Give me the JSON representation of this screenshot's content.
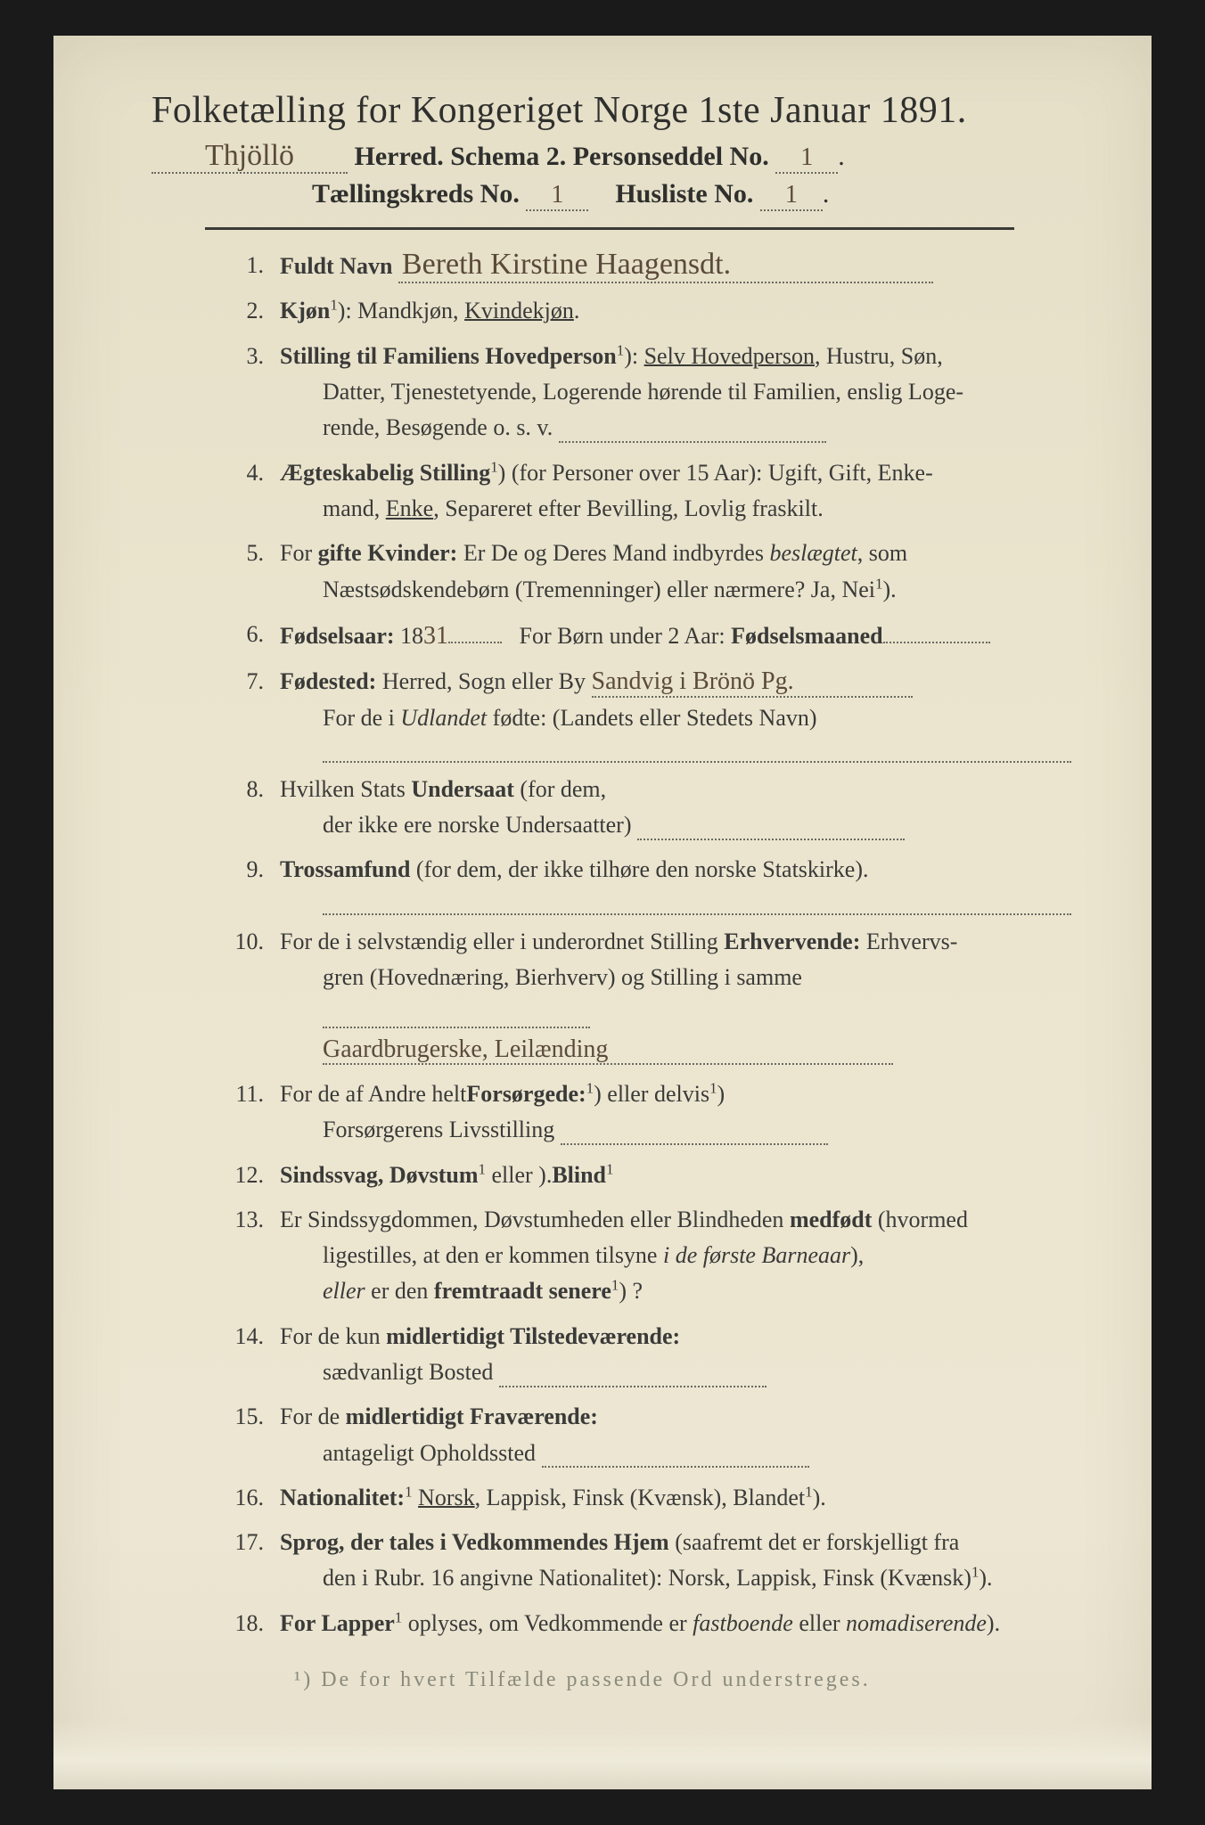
{
  "colors": {
    "paper_bg": "#e8e2ce",
    "page_bg": "#1a1a1a",
    "text": "#3a3a38",
    "handwriting": "#5b4a3a",
    "dotted": "#6a6a60",
    "rule": "#3a3a36",
    "footnote": "#8a8a7c"
  },
  "header": {
    "title_main": "Folketælling for Kongeriget Norge 1ste Januar 1891.",
    "herred_written": "Thjöllö",
    "line2_print": "Herred.   Schema 2.   Personseddel No.",
    "personseddel_no": "1",
    "line3_label_a": "Tællingskreds No.",
    "taellingskreds_no": "1",
    "line3_label_b": "Husliste No.",
    "husliste_no": "1"
  },
  "items": [
    {
      "n": "1.",
      "label": "Fuldt Navn",
      "after": "",
      "written": "Bereth Kirstine Haagensdt."
    },
    {
      "n": "2.",
      "label": "Kjøn",
      "sup": "1",
      "after": "): Mandkjøn, ",
      "underlined": "Kvindekjøn",
      "tail": "."
    },
    {
      "n": "3.",
      "label": "Stilling til Familiens Hovedperson",
      "sup": "1",
      "after": "): ",
      "underlined": "Selv Hovedperson",
      "tail": ", Hustru, Søn,",
      "cont": [
        "Datter, Tjenestetyende, Logerende hørende til Familien, enslig Loge-",
        "rende, Besøgende o. s. v."
      ],
      "cont_dotted_last": true
    },
    {
      "n": "4.",
      "label": "Ægteskabelig Stilling",
      "sup": "1",
      "after": ") (for Personer over 15 Aar): Ugift, Gift, Enke-",
      "cont": [
        "mand, <u>Enke</u>, Separeret efter Bevilling, Lovlig fraskilt."
      ]
    },
    {
      "n": "5.",
      "plain": "For ",
      "label": "gifte Kvinder:",
      "after": " Er De og Deres Mand indbyrdes <i>beslægtet</i>, som",
      "cont": [
        "Næstsødskendebørn (Tremenninger) eller nærmere?  Ja, Nei<sup>1</sup>)."
      ]
    },
    {
      "n": "6.",
      "label": "Fødselsaar:",
      "after": " 18",
      "written_inline": "31",
      "tail_dotted": true,
      "tail_after": "   For Børn under 2 Aar: ",
      "label2": "Fødselsmaaned",
      "tail_dotted2": true
    },
    {
      "n": "7.",
      "label": "Fødested:",
      "after": " Herred, Sogn eller By ",
      "written": "Sandvig i Brönö Pg.",
      "cont": [
        "For de i <i>Udlandet</i> fødte: (Landets eller Stedets Navn)"
      ],
      "blank_line_after": true
    },
    {
      "n": "8.",
      "plain": "Hvilken Stats ",
      "label": "Undersaat",
      "after": " (for dem,",
      "cont": [
        "der ikke ere norske Undersaatter)"
      ],
      "cont_dotted_last": true
    },
    {
      "n": "9.",
      "label": "Trossamfund",
      "after": " (for dem, der ikke tilhøre den norske Statskirke).",
      "blank_line_after": true
    },
    {
      "n": "10.",
      "plain": "For de i selvstændig eller i underordnet Stilling ",
      "label": "Erhvervende:",
      "after": " Erhvervs-",
      "cont": [
        "gren (Hovednæring, Bierhverv) og Stilling i samme"
      ],
      "cont_dotted_last": true,
      "written_line": "Gaardbrugerske, Leilænding"
    },
    {
      "n": "11.",
      "plain": "For de af Andre helt",
      "sup": "1",
      "after2": ") eller delvis",
      "sup2": "1",
      "after3": ") ",
      "label": "Forsørgede:",
      "cont": [
        "Forsørgerens Livsstilling"
      ],
      "cont_dotted_last": true
    },
    {
      "n": "12.",
      "label": "Sindssvag, Døvstum",
      "after": " eller ",
      "label2": "Blind",
      "sup": "1",
      "tail": ")."
    },
    {
      "n": "13.",
      "plain": "Er Sindssygdommen, Døvstumheden eller Blindheden ",
      "label": "medfødt",
      "after": " (hvormed",
      "cont": [
        "ligestilles, at den er kommen tilsyne <i>i de første Barneaar</i>),",
        "<i>eller</i> er den <b>fremtraadt senere</b><sup>1</sup>) ?"
      ]
    },
    {
      "n": "14.",
      "plain": "For de kun ",
      "label": "midlertidigt Tilstedeværende:",
      "cont": [
        "sædvanligt Bosted"
      ],
      "cont_dotted_last": true
    },
    {
      "n": "15.",
      "plain": "For de ",
      "label": "midlertidigt Fraværende:",
      "cont": [
        "antageligt Opholdssted"
      ],
      "cont_dotted_last": true
    },
    {
      "n": "16.",
      "label": "Nationalitet:",
      "after": " ",
      "underlined": "Norsk",
      "tail": ", Lappisk, Finsk (Kvænsk), Blandet",
      "sup": "1",
      "tail2": ")."
    },
    {
      "n": "17.",
      "label": "Sprog, der tales i Vedkommendes Hjem",
      "after": " (saafremt det er forskjelligt fra",
      "cont": [
        "den i Rubr. 16 angivne Nationalitet): Norsk, Lappisk, Finsk (Kvænsk)<sup>1</sup>)."
      ]
    },
    {
      "n": "18.",
      "label": "For Lapper",
      "after": " oplyses, om Vedkommende er <i>fastboende</i> eller <i>nomadiserende</i>",
      "sup": "1",
      "tail": ")."
    }
  ],
  "footnote": "¹) De for hvert Tilfælde passende Ord understreges."
}
